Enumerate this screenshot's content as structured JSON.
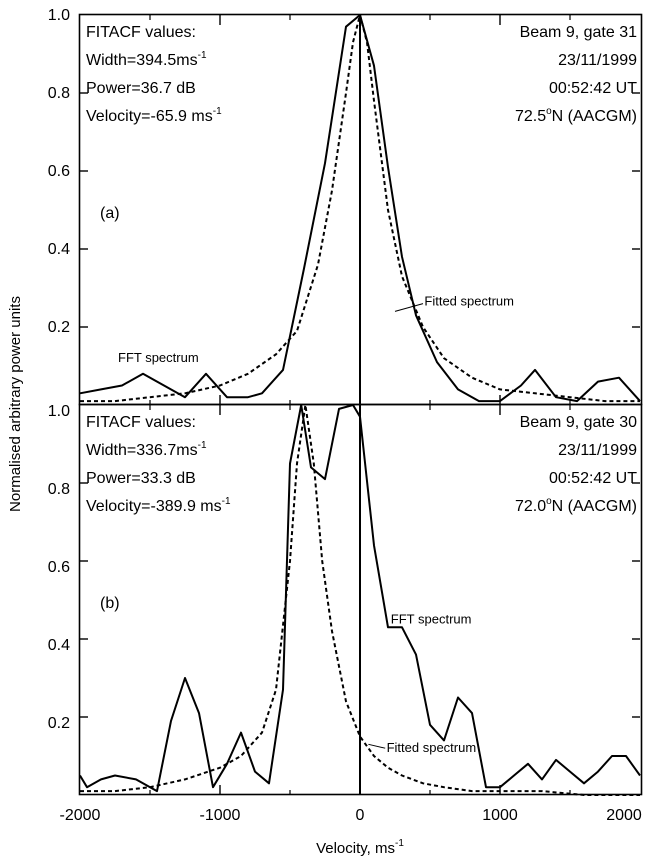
{
  "chart_data": {
    "type": "line",
    "xlabel": "Velocity, ms",
    "xlabel_sup": "-1",
    "ylabel": "Normalised arbitrary power units",
    "xlim": [
      -2000,
      2000
    ],
    "ylim": [
      0,
      1.0
    ],
    "x_ticks": [
      "-2000",
      "-1000",
      "0",
      "1000",
      "2000"
    ],
    "y_ticks": [
      "0.2",
      "0.4",
      "0.6",
      "0.8",
      "1.0"
    ],
    "panels": [
      {
        "label": "(a)",
        "left_text": [
          {
            "text": "FITACF values:",
            "sup": ""
          },
          {
            "text": "Width=394.5ms",
            "sup": "-1"
          },
          {
            "text": "Power=36.7 dB",
            "sup": ""
          },
          {
            "text": "Velocity=-65.9 ms",
            "sup": "-1"
          }
        ],
        "right_text": [
          {
            "pre": "Beam 9, gate 31",
            "sup": "",
            "post": ""
          },
          {
            "pre": "23/11/1999",
            "sup": "",
            "post": ""
          },
          {
            "pre": "00:52:42 UT",
            "sup": "",
            "post": ""
          },
          {
            "pre": "72.5",
            "sup": "o",
            "post": "N (AACGM)"
          }
        ],
        "fft_label": "FFT spectrum",
        "fitted_label": "Fitted spectrum",
        "series": [
          {
            "style": "solid",
            "x": [
              -2000,
              -1850,
              -1700,
              -1550,
              -1400,
              -1250,
              -1100,
              -950,
              -800,
              -700,
              -550,
              -400,
              -250,
              -100,
              0,
              100,
              200,
              300,
              400,
              550,
              700,
              850,
              1000,
              1150,
              1250,
              1400,
              1550,
              1700,
              1850,
              2000
            ],
            "y": [
              0.03,
              0.04,
              0.05,
              0.08,
              0.05,
              0.02,
              0.08,
              0.02,
              0.02,
              0.03,
              0.09,
              0.35,
              0.62,
              0.97,
              1.0,
              0.87,
              0.61,
              0.38,
              0.23,
              0.11,
              0.04,
              0.01,
              0.01,
              0.05,
              0.09,
              0.02,
              0.01,
              0.06,
              0.07,
              0.01
            ]
          },
          {
            "style": "dashed",
            "x": [
              -2000,
              -1750,
              -1500,
              -1250,
              -1000,
              -800,
              -600,
              -450,
              -300,
              -200,
              -100,
              -50,
              0,
              50,
              100,
              200,
              300,
              450,
              600,
              800,
              1000,
              1250,
              1500,
              1750,
              2000
            ],
            "y": [
              0.01,
              0.01,
              0.02,
              0.03,
              0.05,
              0.08,
              0.13,
              0.19,
              0.36,
              0.55,
              0.8,
              0.93,
              1.0,
              0.93,
              0.78,
              0.5,
              0.33,
              0.2,
              0.12,
              0.07,
              0.04,
              0.03,
              0.02,
              0.01,
              0.01
            ]
          }
        ]
      },
      {
        "label": "(b)",
        "left_text": [
          {
            "text": "FITACF values:",
            "sup": ""
          },
          {
            "text": "Width=336.7ms",
            "sup": "-1"
          },
          {
            "text": "Power=33.3 dB",
            "sup": ""
          },
          {
            "text": "Velocity=-389.9 ms",
            "sup": "-1"
          }
        ],
        "right_text": [
          {
            "pre": "Beam 9, gate 30",
            "sup": "",
            "post": ""
          },
          {
            "pre": "23/11/1999",
            "sup": "",
            "post": ""
          },
          {
            "pre": "00:52:42 UT",
            "sup": "",
            "post": ""
          },
          {
            "pre": "72.0",
            "sup": "o",
            "post": "N (AACGM)"
          }
        ],
        "fft_label": "FFT spectrum",
        "fitted_label": "Fitted spectrum",
        "series": [
          {
            "style": "solid",
            "x": [
              -2000,
              -1950,
              -1850,
              -1750,
              -1600,
              -1450,
              -1350,
              -1250,
              -1150,
              -1050,
              -950,
              -850,
              -750,
              -650,
              -550,
              -500,
              -420,
              -350,
              -250,
              -150,
              -50,
              0,
              100,
              200,
              300,
              400,
              500,
              600,
              700,
              800,
              900,
              1000,
              1100,
              1200,
              1300,
              1400,
              1500,
              1600,
              1700,
              1800,
              1900,
              2000
            ],
            "y": [
              0.05,
              0.02,
              0.04,
              0.05,
              0.04,
              0.01,
              0.19,
              0.3,
              0.21,
              0.02,
              0.08,
              0.16,
              0.06,
              0.03,
              0.27,
              0.85,
              1.0,
              0.84,
              0.81,
              0.99,
              1.0,
              0.97,
              0.64,
              0.43,
              0.43,
              0.36,
              0.18,
              0.14,
              0.25,
              0.21,
              0.02,
              0.02,
              0.05,
              0.08,
              0.04,
              0.09,
              0.06,
              0.03,
              0.06,
              0.1,
              0.1,
              0.05
            ]
          },
          {
            "style": "dashed",
            "x": [
              -2000,
              -1750,
              -1500,
              -1250,
              -1000,
              -850,
              -700,
              -600,
              -500,
              -450,
              -390,
              -330,
              -270,
              -200,
              -100,
              0,
              100,
              200,
              300,
              450,
              600,
              800,
              1000,
              1300,
              1600,
              2000
            ],
            "y": [
              0.01,
              0.01,
              0.02,
              0.04,
              0.07,
              0.1,
              0.16,
              0.27,
              0.6,
              0.85,
              1.0,
              0.85,
              0.6,
              0.42,
              0.24,
              0.15,
              0.1,
              0.07,
              0.05,
              0.03,
              0.02,
              0.01,
              0.01,
              0.01,
              0.0,
              0.0
            ]
          }
        ]
      }
    ]
  }
}
